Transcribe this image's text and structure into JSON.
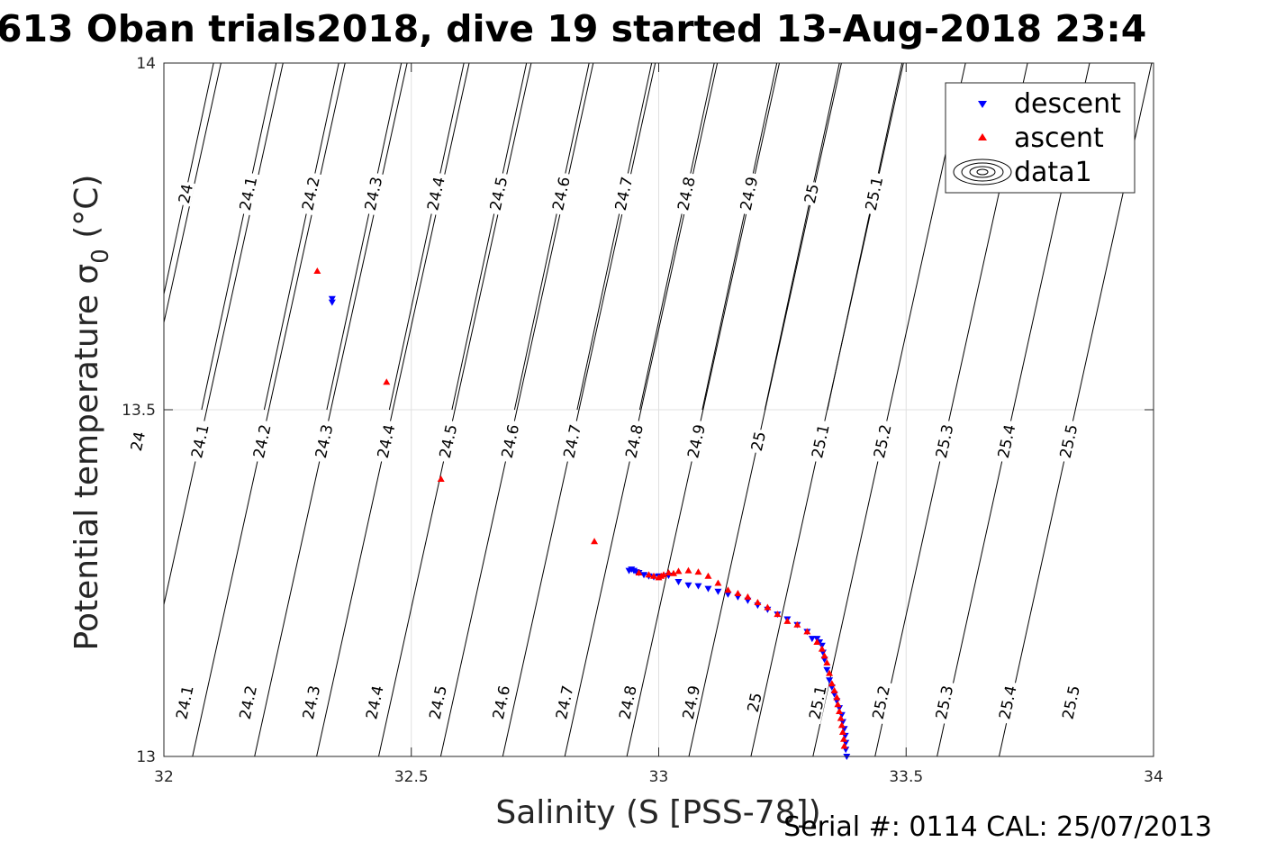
{
  "chart_data": {
    "type": "scatter",
    "title": "613 Oban trials2018, dive 19 started 13-Aug-2018 23:4",
    "xlabel": "Salinity (S [PSS-78])",
    "ylabel_main": "Potential temperature σ",
    "ylabel_sub": "0",
    "ylabel_unit": " (°C)",
    "xlim": [
      32,
      34
    ],
    "ylim": [
      13,
      14
    ],
    "x_ticks": [
      "32",
      "32.5",
      "33",
      "33.5",
      "34"
    ],
    "y_ticks": [
      "13",
      "13.5",
      "14"
    ],
    "grid": true,
    "legend_position": "top-right",
    "legend": [
      "descent",
      "ascent",
      "data1"
    ],
    "series": [
      {
        "name": "descent",
        "marker": "triangle-down",
        "color": "#0000ff",
        "points": [
          [
            32.34,
            13.66
          ],
          [
            32.34,
            13.655
          ],
          [
            32.94,
            13.268
          ],
          [
            32.945,
            13.27
          ],
          [
            32.95,
            13.268
          ],
          [
            32.955,
            13.266
          ],
          [
            32.96,
            13.265
          ],
          [
            32.97,
            13.262
          ],
          [
            32.98,
            13.26
          ],
          [
            32.99,
            13.259
          ],
          [
            33.0,
            13.26
          ],
          [
            33.02,
            13.261
          ],
          [
            33.04,
            13.252
          ],
          [
            33.06,
            13.247
          ],
          [
            33.08,
            13.246
          ],
          [
            33.1,
            13.242
          ],
          [
            33.12,
            13.238
          ],
          [
            33.14,
            13.234
          ],
          [
            33.16,
            13.23
          ],
          [
            33.18,
            13.225
          ],
          [
            33.2,
            13.218
          ],
          [
            33.22,
            13.212
          ],
          [
            33.24,
            13.205
          ],
          [
            33.26,
            13.198
          ],
          [
            33.28,
            13.19
          ],
          [
            33.3,
            13.18
          ],
          [
            33.31,
            13.17
          ],
          [
            33.32,
            13.17
          ],
          [
            33.325,
            13.165
          ],
          [
            33.33,
            13.16
          ],
          [
            33.332,
            13.15
          ],
          [
            33.335,
            13.14
          ],
          [
            33.34,
            13.125
          ],
          [
            33.345,
            13.11
          ],
          [
            33.35,
            13.1
          ],
          [
            33.355,
            13.09
          ],
          [
            33.36,
            13.08
          ],
          [
            33.365,
            13.07
          ],
          [
            33.37,
            13.06
          ],
          [
            33.372,
            13.05
          ],
          [
            33.375,
            13.04
          ],
          [
            33.377,
            13.03
          ],
          [
            33.378,
            13.02
          ],
          [
            33.378,
            13.01
          ],
          [
            33.38,
            13.0
          ]
        ]
      },
      {
        "name": "ascent",
        "marker": "triangle-up",
        "color": "#ff0000",
        "points": [
          [
            32.31,
            13.7
          ],
          [
            32.45,
            13.54
          ],
          [
            32.56,
            13.4
          ],
          [
            32.87,
            13.31
          ],
          [
            32.96,
            13.265
          ],
          [
            32.98,
            13.262
          ],
          [
            32.99,
            13.26
          ],
          [
            33.0,
            13.258
          ],
          [
            33.005,
            13.26
          ],
          [
            33.01,
            13.262
          ],
          [
            33.02,
            13.265
          ],
          [
            33.03,
            13.264
          ],
          [
            33.04,
            13.267
          ],
          [
            33.06,
            13.268
          ],
          [
            33.08,
            13.266
          ],
          [
            33.1,
            13.26
          ],
          [
            33.12,
            13.25
          ],
          [
            33.14,
            13.24
          ],
          [
            33.16,
            13.235
          ],
          [
            33.18,
            13.23
          ],
          [
            33.2,
            13.222
          ],
          [
            33.22,
            13.215
          ],
          [
            33.24,
            13.205
          ],
          [
            33.26,
            13.195
          ],
          [
            33.28,
            13.19
          ],
          [
            33.3,
            13.18
          ],
          [
            33.32,
            13.165
          ],
          [
            33.33,
            13.155
          ],
          [
            33.335,
            13.145
          ],
          [
            33.34,
            13.135
          ],
          [
            33.345,
            13.12
          ],
          [
            33.35,
            13.105
          ],
          [
            33.355,
            13.095
          ],
          [
            33.36,
            13.085
          ],
          [
            33.362,
            13.075
          ],
          [
            33.365,
            13.065
          ],
          [
            33.368,
            13.055
          ],
          [
            33.37,
            13.045
          ],
          [
            33.372,
            13.035
          ],
          [
            33.374,
            13.025
          ],
          [
            33.375,
            13.015
          ]
        ]
      }
    ],
    "density_contours": {
      "top_set": [
        {
          "label": "24"
        },
        {
          "label": "24.1"
        },
        {
          "label": "24.2"
        },
        {
          "label": "24.3"
        },
        {
          "label": "24.4"
        },
        {
          "label": "24.5"
        },
        {
          "label": "24.6"
        },
        {
          "label": "24.7"
        },
        {
          "label": "24.8"
        },
        {
          "label": "24.9"
        },
        {
          "label": "25"
        },
        {
          "label": "25.1"
        }
      ],
      "middle_set": [
        {
          "label": "24"
        },
        {
          "label": "24.1"
        },
        {
          "label": "24.2"
        },
        {
          "label": "24.3"
        },
        {
          "label": "24.4"
        },
        {
          "label": "24.5"
        },
        {
          "label": "24.6"
        },
        {
          "label": "24.7"
        },
        {
          "label": "24.8"
        },
        {
          "label": "24.9"
        },
        {
          "label": "25"
        },
        {
          "label": "25.1"
        },
        {
          "label": "25.2"
        },
        {
          "label": "25.3"
        },
        {
          "label": "25.4"
        },
        {
          "label": "25.5"
        }
      ],
      "bottom_set": [
        {
          "label": "24.1"
        },
        {
          "label": "24.2"
        },
        {
          "label": "24.3"
        },
        {
          "label": "24.4"
        },
        {
          "label": "24.5"
        },
        {
          "label": "24.6"
        },
        {
          "label": "24.7"
        },
        {
          "label": "24.8"
        },
        {
          "label": "24.9"
        },
        {
          "label": "25"
        },
        {
          "label": "25.1"
        },
        {
          "label": "25.2"
        },
        {
          "label": "25.3"
        },
        {
          "label": "25.4"
        },
        {
          "label": "25.5"
        }
      ]
    }
  },
  "footer": {
    "serial": "Serial #: 0114  CAL: 25/07/2013"
  }
}
